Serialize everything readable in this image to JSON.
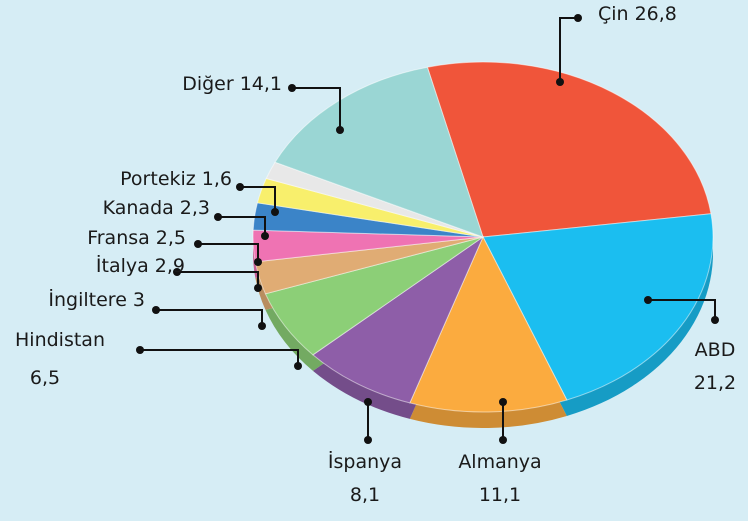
{
  "chart_data": {
    "type": "pie",
    "categories": [
      "Çin",
      "ABD",
      "Almanya",
      "İspanya",
      "Hindistan",
      "İngiltere",
      "İtalya",
      "Fransa",
      "Kanada",
      "Portekiz",
      "Diğer"
    ],
    "values": [
      26.8,
      21.2,
      11.1,
      8.1,
      6.5,
      3,
      2.9,
      2.5,
      2.3,
      1.6,
      14.1
    ],
    "value_labels": [
      "26,8",
      "21,2",
      "11,1",
      "8,1",
      "6,5",
      "3",
      "2,9",
      "2,5",
      "2,3",
      "1,6",
      "14,1"
    ],
    "colors": [
      "#f0553a",
      "#1bbef0",
      "#fbab3f",
      "#8e5ea8",
      "#8ccf77",
      "#e0ac74",
      "#ef73b3",
      "#3b84c8",
      "#f8ef6c",
      "#e8e8e8",
      "#9ad6d4"
    ]
  }
}
